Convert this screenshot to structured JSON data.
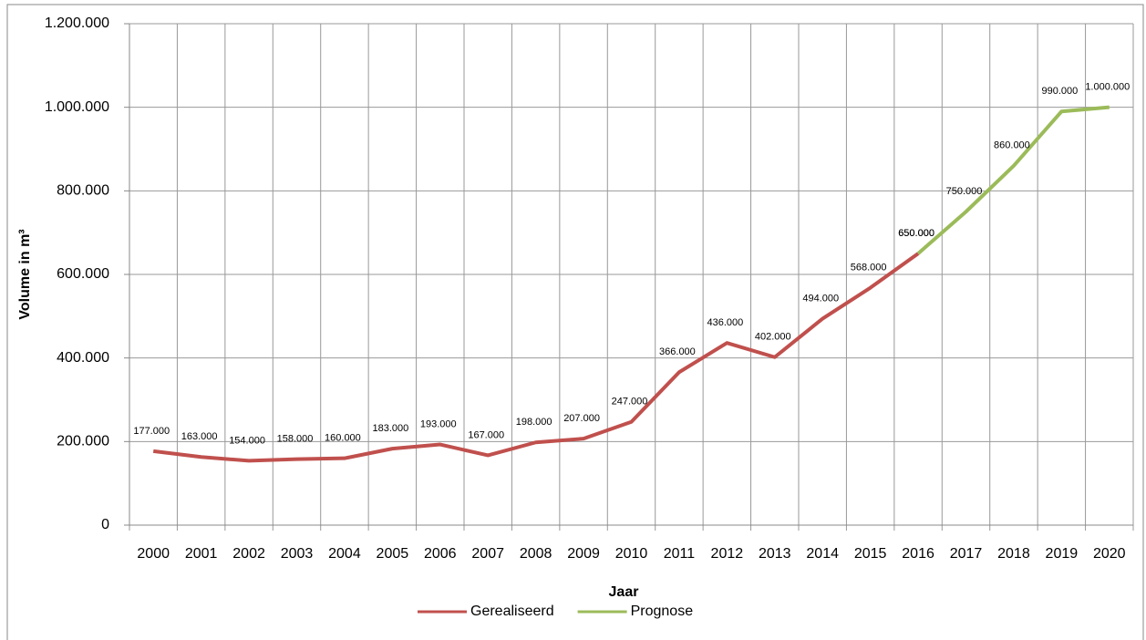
{
  "chart_data": {
    "type": "line",
    "x_label": "Jaar",
    "y_label": "Volume in m³",
    "categories": [
      "2000",
      "2001",
      "2002",
      "2003",
      "2004",
      "2005",
      "2006",
      "2007",
      "2008",
      "2009",
      "2010",
      "2011",
      "2012",
      "2013",
      "2014",
      "2015",
      "2016",
      "2017",
      "2018",
      "2019",
      "2020"
    ],
    "series": [
      {
        "name": "Gerealiseerd",
        "color": "#c0504d",
        "values": [
          177000,
          163000,
          154000,
          158000,
          160000,
          183000,
          193000,
          167000,
          198000,
          207000,
          247000,
          366000,
          436000,
          402000,
          494000,
          568000,
          650000,
          null,
          null,
          null,
          null
        ],
        "value_labels": [
          "177.000",
          "163.000",
          "154.000",
          "158.000",
          "160.000",
          "183.000",
          "193.000",
          "167.000",
          "198.000",
          "207.000",
          "247.000",
          "366.000",
          "436.000",
          "402.000",
          "494.000",
          "568.000",
          "650.000",
          null,
          null,
          null,
          null
        ]
      },
      {
        "name": "Prognose",
        "color": "#9bbb59",
        "values": [
          null,
          null,
          null,
          null,
          null,
          null,
          null,
          null,
          null,
          null,
          null,
          null,
          null,
          null,
          null,
          null,
          650000,
          750000,
          860000,
          990000,
          1000000
        ],
        "value_labels": [
          null,
          null,
          null,
          null,
          null,
          null,
          null,
          null,
          null,
          null,
          null,
          null,
          null,
          null,
          null,
          null,
          "650.000",
          "750.000",
          "860.000",
          "990.000",
          "1.000.000"
        ]
      }
    ],
    "ylim": [
      0,
      1200000
    ],
    "yticks": [
      0,
      {
        "value": 200000,
        "label": "200.000"
      },
      {
        "value": 400000,
        "label": "400.000"
      },
      {
        "value": 600000,
        "label": "600.000"
      },
      {
        "value": 800000,
        "label": "800.000"
      },
      {
        "value": 1000000,
        "label": "1.000.000"
      },
      {
        "value": 1200000,
        "label": "1.200.000"
      }
    ],
    "grid": true,
    "legend": "bottom"
  }
}
